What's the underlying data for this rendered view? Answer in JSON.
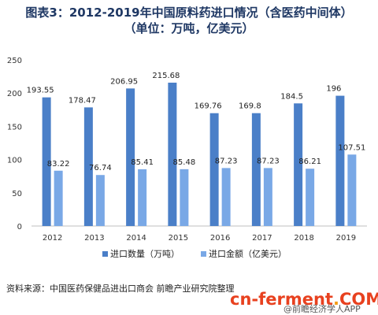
{
  "title": "图表3：2012-2019年中国原料药进口情况（含医药中间体）",
  "subtitle": "（单位：万吨，亿美元）",
  "source": "资料来源：中国医药保健品进出口商会 前瞻产业研究院整理",
  "watermark": {
    "brand_prefix": "cn-ferment",
    "brand_dot": ".",
    "brand_suffix": "COM",
    "sub": "@前瞻经济学人APP"
  },
  "colors": {
    "series1": "#4a7fc8",
    "series2": "#79a8e6",
    "title": "#1f3864",
    "axis": "#bfbfbf",
    "brand": "#e8411f"
  },
  "chart_data": {
    "type": "bar",
    "title": "图表3：2012-2019年中国原料药进口情况（含医药中间体）",
    "subtitle": "（单位：万吨，亿美元）",
    "categories": [
      "2012",
      "2013",
      "2014",
      "2015",
      "2016",
      "2017",
      "2018",
      "2019"
    ],
    "series": [
      {
        "name": "进口数量（万吨）",
        "values": [
          193.55,
          178.47,
          206.95,
          215.68,
          169.76,
          169.8,
          184.5,
          196
        ],
        "labels": [
          "193.55",
          "178.47",
          "206.95",
          "215.68",
          "169.76",
          "169.8",
          "184.5",
          "196"
        ]
      },
      {
        "name": "进口金额（亿美元）",
        "values": [
          83.22,
          76.74,
          85.41,
          85.48,
          87.23,
          87.23,
          86.21,
          107.51
        ],
        "labels": [
          "83.22",
          "76.74",
          "85.41",
          "85.48",
          "87.23",
          "87.23",
          "86.21",
          "107.51"
        ]
      }
    ],
    "yticks": [
      "0",
      "50",
      "100",
      "150",
      "200",
      "250"
    ],
    "ylim": [
      0,
      250
    ],
    "grid": false,
    "legend": "bottom"
  }
}
